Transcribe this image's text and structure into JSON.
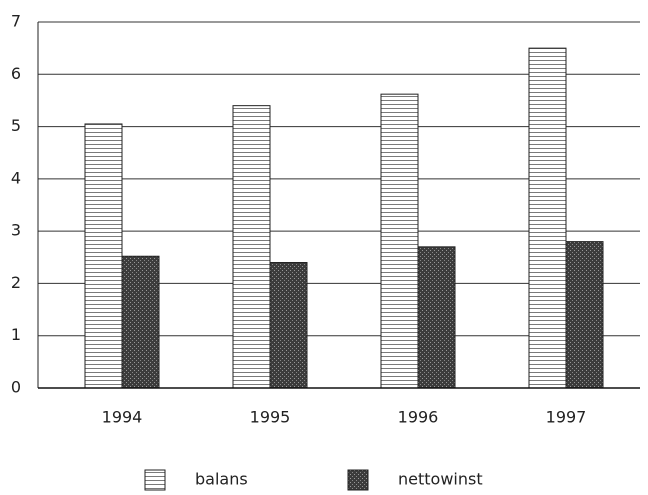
{
  "chart_data": {
    "type": "bar",
    "categories": [
      "1994",
      "1995",
      "1996",
      "1997"
    ],
    "series": [
      {
        "name": "balans",
        "color": "#7a7a7a",
        "values": [
          5.05,
          5.4,
          5.62,
          6.5
        ]
      },
      {
        "name": "nettowinst",
        "color": "#3c3c3c",
        "values": [
          2.52,
          2.4,
          2.7,
          2.8
        ]
      }
    ],
    "ylim": [
      0,
      7
    ],
    "yticks": [
      0,
      1,
      2,
      3,
      4,
      5,
      6,
      7
    ],
    "grid": true,
    "legend": "bottom"
  }
}
